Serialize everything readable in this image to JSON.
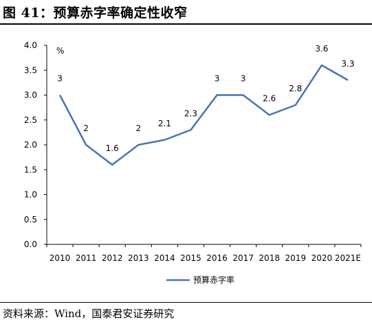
{
  "header": {
    "title": "图 41：预算赤字率确定性收窄"
  },
  "footer": {
    "source": "资料来源：Wind，国泰君安证券研究"
  },
  "chart_data": {
    "type": "line",
    "unit_label": "%",
    "categories": [
      "2010",
      "2011",
      "2012",
      "2013",
      "2014",
      "2015",
      "2016",
      "2017",
      "2018",
      "2019",
      "2020",
      "2021E"
    ],
    "series": [
      {
        "name": "预算赤字率",
        "values": [
          3,
          2,
          1.6,
          2,
          2.1,
          2.3,
          3,
          3,
          2.6,
          2.8,
          3.6,
          3.3
        ],
        "labels": [
          "3",
          "2",
          "1.6",
          "2",
          "2.1",
          "2.3",
          "3",
          "3",
          "2.6",
          "2.8",
          "3.6",
          "3.3"
        ],
        "color": "#4a72b0"
      }
    ],
    "yticks": [
      "0.0",
      "0.5",
      "1.0",
      "1.5",
      "2.0",
      "2.5",
      "3.0",
      "3.5",
      "4.0"
    ],
    "ylim": [
      0,
      4
    ],
    "grid": false,
    "legend_position": "bottom"
  }
}
